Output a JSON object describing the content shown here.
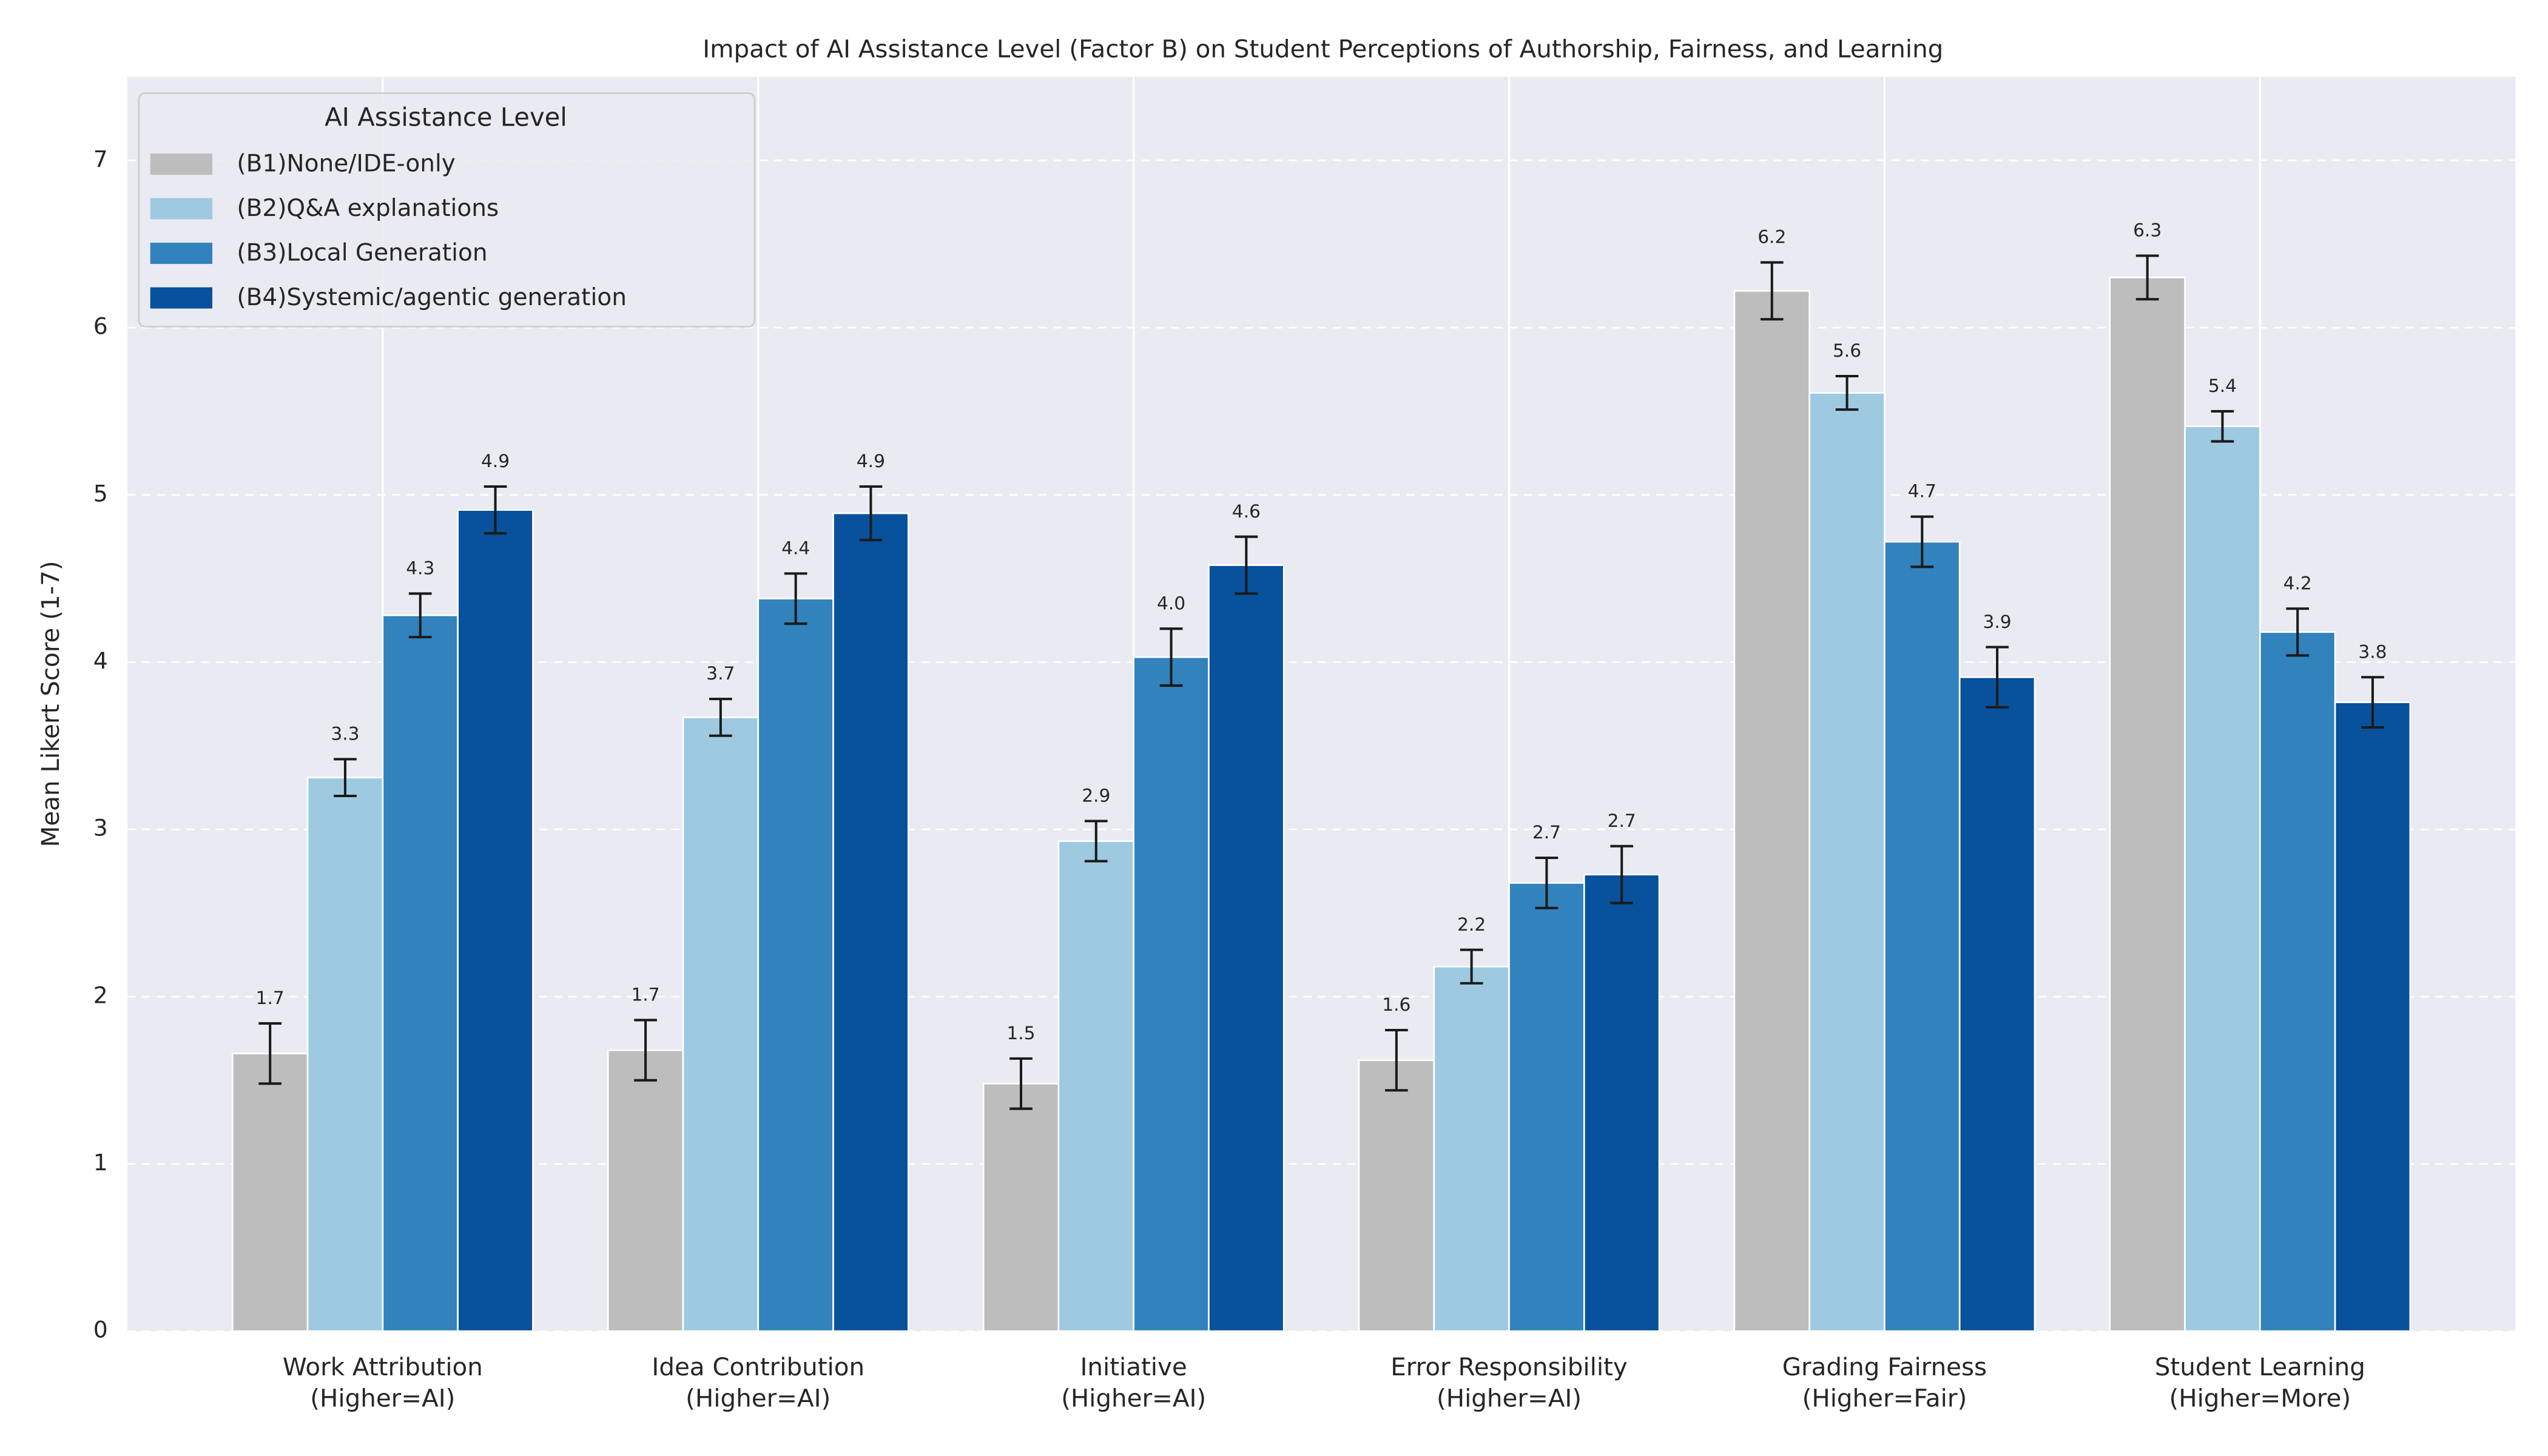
{
  "chart_data": {
    "type": "bar",
    "title": "Impact of AI Assistance Level (Factor B) on Student Perceptions of Authorship, Fairness, and Learning",
    "y_label": "Mean Likert Score (1-7)",
    "categories": [
      "Work Attribution\n(Higher=AI)",
      "Idea Contribution\n(Higher=AI)",
      "Initiative\n(Higher=AI)",
      "Error Responsibility\n(Higher=AI)",
      "Grading Fairness\n(Higher=Fair)",
      "Student Learning\n(Higher=More)"
    ],
    "series": [
      {
        "name": "(B1)None/IDE-only",
        "color": "#bdbdbd",
        "values": [
          1.66,
          1.68,
          1.48,
          1.62,
          6.22,
          6.3
        ],
        "errors": [
          0.18,
          0.18,
          0.15,
          0.18,
          0.17,
          0.13
        ],
        "value_labels": [
          "1.7",
          "1.7",
          "1.5",
          "1.6",
          "6.2",
          "6.3"
        ]
      },
      {
        "name": "(B2)Q&A explanations",
        "color": "#9ecae1",
        "values": [
          3.31,
          3.67,
          2.93,
          2.18,
          5.61,
          5.41
        ],
        "errors": [
          0.11,
          0.11,
          0.12,
          0.1,
          0.1,
          0.09
        ],
        "value_labels": [
          "3.3",
          "3.7",
          "2.9",
          "2.2",
          "5.6",
          "5.4"
        ]
      },
      {
        "name": "(B3)Local Generation",
        "color": "#3182bd",
        "values": [
          4.28,
          4.38,
          4.03,
          2.68,
          4.72,
          4.18
        ],
        "errors": [
          0.13,
          0.15,
          0.17,
          0.15,
          0.15,
          0.14
        ],
        "value_labels": [
          "4.3",
          "4.4",
          "4.0",
          "2.7",
          "4.7",
          "4.2"
        ]
      },
      {
        "name": "(B4)Systemic/agentic generation",
        "color": "#08519c",
        "values": [
          4.91,
          4.89,
          4.58,
          2.73,
          3.91,
          3.76
        ],
        "errors": [
          0.14,
          0.16,
          0.17,
          0.17,
          0.18,
          0.15
        ],
        "value_labels": [
          "4.9",
          "4.9",
          "4.6",
          "2.7",
          "3.9",
          "3.8"
        ]
      }
    ],
    "legend_title": "AI Assistance Level",
    "legend_position": "upper left",
    "ylim": [
      0,
      7.5
    ],
    "yticks": [
      0,
      1,
      2,
      3,
      4,
      5,
      6,
      7
    ],
    "grid": true,
    "background": "#eaeaf2"
  }
}
